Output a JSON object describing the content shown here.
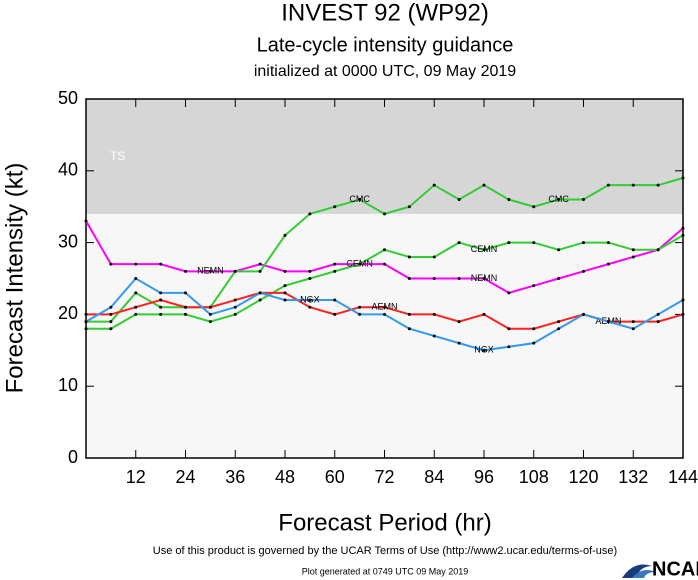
{
  "chart_data": {
    "type": "line",
    "title": "INVEST 92 (WP92)",
    "subtitle": "Late-cycle intensity guidance",
    "subtitle2": "initialized at 0000 UTC, 09 May 2019",
    "xlabel": "Forecast Period (hr)",
    "ylabel": "Forecast Intensity (kt)",
    "x": [
      0,
      6,
      12,
      18,
      24,
      30,
      36,
      42,
      48,
      54,
      60,
      66,
      72,
      78,
      84,
      90,
      96,
      102,
      108,
      114,
      120,
      126,
      132,
      138,
      144
    ],
    "xlim": [
      0,
      144
    ],
    "xticks": [
      12,
      24,
      36,
      48,
      60,
      72,
      84,
      96,
      108,
      120,
      132,
      144
    ],
    "ylim": [
      0,
      50
    ],
    "yticks": [
      0,
      10,
      20,
      30,
      40,
      50
    ],
    "bands": [
      {
        "label": "TS",
        "from": 34,
        "to": 50,
        "color": "#d6d6d6"
      }
    ],
    "series": [
      {
        "name": "NEMN",
        "color": "#ff00ff",
        "values": [
          33,
          27,
          27,
          27,
          26,
          26,
          26,
          27,
          26,
          26,
          27,
          27,
          27,
          25,
          25,
          25,
          25,
          23,
          24,
          25,
          26,
          27,
          28,
          29,
          32
        ]
      },
      {
        "name": "CMC",
        "color": "#33cc33",
        "values": [
          19,
          19,
          23,
          21,
          21,
          21,
          26,
          26,
          31,
          34,
          35,
          36,
          34,
          35,
          38,
          36,
          38,
          36,
          35,
          36,
          36,
          38,
          38,
          38,
          39
        ]
      },
      {
        "name": "CEMN",
        "color": "#33cc33",
        "values": [
          18,
          18,
          20,
          20,
          20,
          19,
          20,
          22,
          24,
          25,
          26,
          27,
          29,
          28,
          28,
          30,
          29,
          30,
          30,
          29,
          30,
          30,
          29,
          29,
          31
        ]
      },
      {
        "name": "AEMN",
        "color": "#ff2020",
        "values": [
          20,
          20,
          21,
          22,
          21,
          21,
          22,
          23,
          23,
          21,
          20,
          21,
          21,
          20,
          20,
          19,
          20,
          18,
          18,
          19,
          20,
          19,
          19,
          19,
          20
        ]
      },
      {
        "name": "NGX",
        "color": "#3399ee",
        "values": [
          19,
          21,
          25,
          23,
          23,
          20,
          21,
          23,
          22,
          22,
          22,
          20,
          20,
          18,
          17,
          16,
          15,
          15.5,
          16,
          18,
          20,
          19,
          18,
          20,
          22
        ]
      }
    ],
    "footer": "Use of this product is governed by the UCAR Terms of Use (http://www2.ucar.edu/terms-of-use)",
    "generated": "Plot generated at 0749 UTC  09 May 2019",
    "logo": "NCAR"
  }
}
